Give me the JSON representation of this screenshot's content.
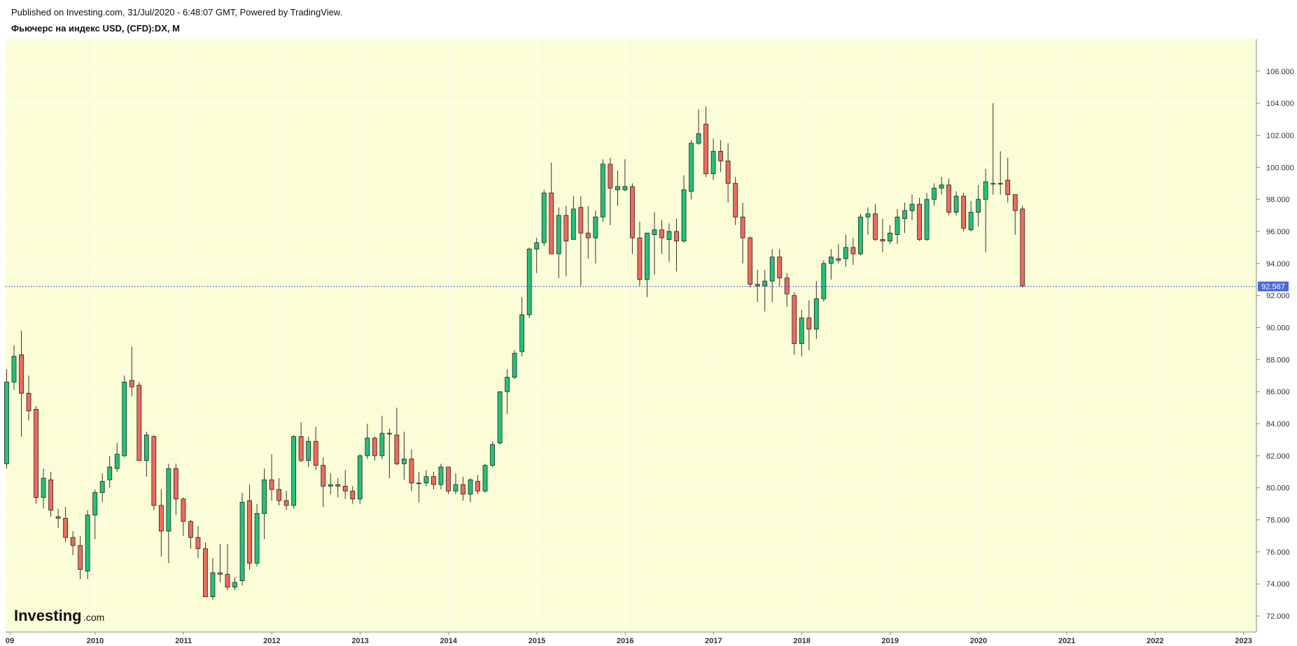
{
  "header": {
    "published": "Published on Investing.com, 31/Jul/2020 - 6:48:07 GMT, Powered by TradingView.",
    "title": "Фьючерс на индекс USD, (CFD):DX, M"
  },
  "logo": {
    "brand": "Investing",
    "suffix": ".com"
  },
  "colors": {
    "background": "#fbfdd6",
    "grid": "#ffffff",
    "up": "#22c27a",
    "down": "#ef6a5e",
    "wick": "#333333",
    "last_price_line": "#3b5bd6",
    "last_price_tag": "#4a69dd"
  },
  "chart_data": {
    "type": "candlestick",
    "interval": "M",
    "ylim": [
      71,
      108
    ],
    "y_ticks": [
      72,
      74,
      76,
      78,
      80,
      82,
      84,
      86,
      88,
      90,
      92,
      94,
      96,
      98,
      100,
      102,
      104,
      106
    ],
    "y_tick_labels": [
      "72.000",
      "74.000",
      "76.000",
      "78.000",
      "80.000",
      "82.000",
      "84.000",
      "86.000",
      "88.000",
      "90.000",
      "92.000",
      "94.000",
      "96.000",
      "98.000",
      "100.000",
      "102.000",
      "104.000",
      "106.000"
    ],
    "x_tick_labels": [
      "09",
      "2010",
      "2011",
      "2012",
      "2013",
      "2014",
      "2015",
      "2016",
      "2017",
      "2018",
      "2019",
      "2020",
      "2021",
      "2022",
      "2023"
    ],
    "last_price": 92.567,
    "last_price_label": "92.567",
    "candles": [
      [
        81.5,
        86.6,
        87.4,
        81.2
      ],
      [
        86.6,
        88.2,
        88.9,
        86.1
      ],
      [
        88.3,
        85.9,
        89.8,
        83.2
      ],
      [
        85.9,
        84.8,
        87.0,
        84.2
      ],
      [
        84.9,
        79.4,
        85.1,
        79.0
      ],
      [
        79.4,
        80.6,
        81.2,
        78.7
      ],
      [
        80.5,
        78.6,
        81.0,
        78.2
      ],
      [
        78.2,
        78.1,
        78.7,
        77.5
      ],
      [
        78.1,
        76.9,
        78.8,
        76.6
      ],
      [
        76.9,
        76.4,
        77.3,
        75.8
      ],
      [
        76.4,
        74.9,
        77.0,
        74.3
      ],
      [
        74.8,
        78.3,
        78.6,
        74.3
      ],
      [
        78.3,
        79.7,
        79.9,
        76.8
      ],
      [
        79.7,
        80.4,
        80.9,
        79.1
      ],
      [
        80.5,
        81.3,
        82.0,
        80.0
      ],
      [
        81.2,
        82.1,
        82.8,
        81.0
      ],
      [
        82.0,
        86.6,
        87.0,
        81.9
      ],
      [
        86.7,
        86.3,
        88.8,
        85.7
      ],
      [
        86.4,
        81.7,
        86.6,
        81.7
      ],
      [
        81.7,
        83.3,
        83.5,
        80.7
      ],
      [
        83.2,
        78.9,
        83.3,
        78.6
      ],
      [
        78.9,
        77.3,
        79.9,
        75.7
      ],
      [
        77.3,
        81.2,
        81.5,
        75.3
      ],
      [
        81.2,
        79.3,
        81.5,
        78.3
      ],
      [
        79.3,
        77.9,
        79.4,
        77.0
      ],
      [
        77.9,
        76.9,
        78.0,
        76.2
      ],
      [
        76.9,
        76.2,
        77.6,
        75.6
      ],
      [
        76.2,
        73.2,
        76.6,
        73.2
      ],
      [
        73.2,
        74.7,
        75.6,
        73.0
      ],
      [
        74.7,
        74.6,
        76.5,
        74.1
      ],
      [
        74.6,
        73.8,
        76.5,
        73.6
      ],
      [
        73.8,
        74.1,
        74.4,
        73.6
      ],
      [
        74.2,
        79.1,
        79.7,
        73.9
      ],
      [
        79.2,
        75.3,
        80.2,
        74.9
      ],
      [
        75.3,
        78.4,
        79.0,
        75.1
      ],
      [
        78.4,
        80.5,
        81.2,
        76.8
      ],
      [
        80.5,
        79.9,
        82.1,
        79.2
      ],
      [
        79.9,
        79.2,
        80.6,
        78.9
      ],
      [
        79.2,
        78.9,
        79.8,
        78.6
      ],
      [
        78.9,
        83.2,
        83.3,
        78.7
      ],
      [
        83.2,
        81.7,
        84.1,
        81.6
      ],
      [
        81.7,
        82.9,
        83.2,
        81.3
      ],
      [
        82.9,
        81.4,
        83.8,
        81.1
      ],
      [
        81.4,
        80.1,
        81.9,
        78.8
      ],
      [
        80.1,
        80.2,
        80.9,
        79.6
      ],
      [
        80.2,
        80.1,
        80.6,
        79.4
      ],
      [
        80.1,
        79.8,
        81.1,
        79.3
      ],
      [
        79.8,
        79.3,
        80.1,
        79.0
      ],
      [
        79.3,
        82.0,
        82.1,
        79.0
      ],
      [
        82.0,
        83.1,
        84.0,
        81.8
      ],
      [
        83.1,
        82.0,
        83.2,
        81.7
      ],
      [
        82.0,
        83.4,
        84.5,
        81.8
      ],
      [
        83.4,
        83.4,
        83.7,
        80.6
      ],
      [
        83.3,
        81.5,
        85.0,
        81.4
      ],
      [
        81.5,
        81.8,
        83.5,
        80.5
      ],
      [
        81.8,
        80.3,
        82.4,
        79.8
      ],
      [
        80.3,
        80.3,
        81.0,
        79.1
      ],
      [
        80.3,
        80.7,
        81.1,
        80.1
      ],
      [
        80.7,
        80.2,
        81.0,
        79.9
      ],
      [
        80.2,
        81.3,
        81.5,
        79.9
      ],
      [
        81.3,
        79.8,
        81.3,
        79.6
      ],
      [
        79.8,
        80.2,
        80.9,
        79.6
      ],
      [
        80.2,
        79.6,
        80.7,
        79.2
      ],
      [
        79.6,
        80.5,
        80.6,
        79.1
      ],
      [
        80.4,
        79.8,
        80.8,
        79.6
      ],
      [
        79.8,
        81.4,
        81.5,
        79.7
      ],
      [
        81.4,
        82.7,
        82.9,
        81.3
      ],
      [
        82.8,
        86.0,
        86.0,
        82.7
      ],
      [
        86.0,
        86.9,
        87.4,
        84.6
      ],
      [
        86.9,
        88.4,
        88.6,
        86.8
      ],
      [
        88.5,
        90.8,
        91.9,
        88.2
      ],
      [
        90.8,
        94.9,
        95.0,
        90.6
      ],
      [
        94.9,
        95.3,
        95.6,
        93.4
      ],
      [
        95.3,
        98.4,
        98.6,
        95.1
      ],
      [
        98.4,
        94.6,
        100.3,
        94.6
      ],
      [
        94.6,
        97.0,
        97.5,
        93.1
      ],
      [
        97.0,
        95.4,
        97.6,
        93.2
      ],
      [
        95.5,
        97.4,
        98.2,
        95.7
      ],
      [
        97.5,
        95.9,
        98.2,
        92.6
      ],
      [
        95.9,
        95.6,
        97.6,
        94.3
      ],
      [
        95.6,
        96.9,
        97.3,
        94.0
      ],
      [
        96.9,
        100.2,
        100.5,
        96.6
      ],
      [
        100.2,
        98.7,
        100.6,
        96.4
      ],
      [
        98.6,
        98.8,
        99.8,
        97.6
      ],
      [
        98.6,
        98.8,
        100.5,
        98.5
      ],
      [
        98.8,
        95.6,
        99.0,
        94.6
      ],
      [
        95.6,
        93.0,
        96.6,
        92.6
      ],
      [
        93.0,
        95.9,
        95.9,
        91.9
      ],
      [
        95.8,
        96.1,
        97.2,
        93.3
      ],
      [
        96.1,
        95.6,
        96.7,
        94.6
      ],
      [
        95.5,
        96.0,
        96.5,
        94.1
      ],
      [
        96.0,
        95.4,
        96.8,
        93.5
      ],
      [
        95.4,
        98.6,
        99.5,
        95.3
      ],
      [
        98.5,
        101.5,
        101.7,
        98.0
      ],
      [
        101.5,
        102.1,
        103.6,
        101.4
      ],
      [
        102.7,
        99.6,
        103.8,
        99.4
      ],
      [
        99.6,
        101.0,
        101.8,
        99.2
      ],
      [
        101.0,
        100.4,
        101.7,
        99.7
      ],
      [
        100.4,
        99.0,
        101.5,
        97.8
      ],
      [
        99.0,
        96.9,
        99.4,
        96.4
      ],
      [
        96.9,
        95.6,
        97.8,
        94.0
      ],
      [
        95.6,
        92.7,
        95.7,
        92.5
      ],
      [
        92.7,
        92.6,
        93.6,
        91.6
      ],
      [
        92.6,
        92.9,
        93.6,
        91.0
      ],
      [
        92.9,
        94.4,
        94.9,
        91.6
      ],
      [
        94.4,
        93.1,
        94.9,
        92.6
      ],
      [
        93.1,
        92.1,
        93.4,
        91.3
      ],
      [
        92.0,
        89.0,
        92.2,
        88.3
      ],
      [
        89.0,
        90.6,
        91.1,
        88.2
      ],
      [
        90.6,
        89.9,
        91.7,
        88.6
      ],
      [
        89.9,
        91.8,
        92.9,
        89.3
      ],
      [
        91.8,
        94.0,
        94.2,
        91.6
      ],
      [
        94.0,
        94.4,
        94.9,
        93.0
      ],
      [
        94.3,
        94.2,
        95.2,
        94.0
      ],
      [
        94.3,
        95.0,
        95.8,
        93.8
      ],
      [
        95.0,
        94.6,
        95.6,
        93.9
      ],
      [
        94.6,
        96.9,
        97.1,
        94.5
      ],
      [
        96.9,
        97.1,
        97.5,
        95.8
      ],
      [
        97.1,
        95.5,
        97.7,
        95.4
      ],
      [
        95.5,
        95.4,
        96.8,
        94.7
      ],
      [
        95.4,
        95.9,
        96.4,
        95.2
      ],
      [
        95.8,
        96.9,
        97.4,
        95.2
      ],
      [
        96.8,
        97.3,
        97.8,
        95.9
      ],
      [
        97.3,
        97.7,
        98.3,
        96.7
      ],
      [
        97.7,
        95.5,
        98.1,
        95.4
      ],
      [
        95.5,
        98.0,
        98.4,
        95.4
      ],
      [
        98.0,
        98.7,
        99.0,
        97.6
      ],
      [
        98.7,
        98.9,
        99.4,
        98.3
      ],
      [
        98.9,
        97.2,
        99.3,
        97.0
      ],
      [
        97.2,
        98.2,
        98.5,
        97.0
      ],
      [
        98.2,
        96.2,
        98.4,
        96.0
      ],
      [
        96.1,
        97.2,
        97.9,
        96.0
      ],
      [
        97.2,
        98.0,
        98.9,
        96.3
      ],
      [
        98.0,
        99.1,
        99.9,
        94.7
      ],
      [
        99.0,
        99.0,
        104.0,
        98.3
      ],
      [
        99.0,
        99.0,
        101.0,
        98.3
      ],
      [
        99.2,
        98.3,
        100.6,
        97.8
      ],
      [
        98.3,
        97.3,
        98.3,
        95.8
      ],
      [
        97.4,
        92.6,
        97.6,
        92.5
      ]
    ]
  }
}
